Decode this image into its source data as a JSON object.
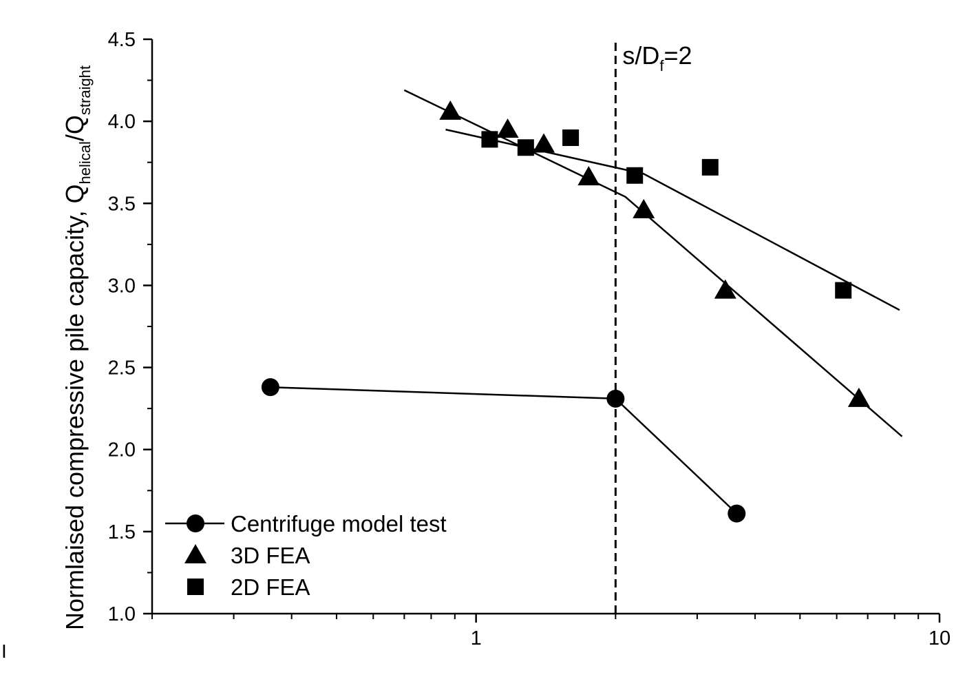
{
  "chart_data": {
    "type": "scatter",
    "title": "",
    "ylabel": {
      "main": "Normlaised compressive pile capacity, Q",
      "sub1": "helical",
      "sep": "/Q",
      "sub2": "straight"
    },
    "xlabel": "",
    "x_scale": "log",
    "xlim": [
      0.2,
      10
    ],
    "ylim": [
      1.0,
      4.5
    ],
    "x_major_ticks": [
      1,
      10
    ],
    "x_tick_labels": [
      "1",
      "10"
    ],
    "y_major_ticks": [
      1.0,
      1.5,
      2.0,
      2.5,
      3.0,
      3.5,
      4.0,
      4.5
    ],
    "y_tick_labels": [
      "1.0",
      "1.5",
      "2.0",
      "2.5",
      "3.0",
      "3.5",
      "4.0",
      "4.5"
    ],
    "grid": false,
    "legend_position": "bottom-left",
    "series": [
      {
        "name": "Centrifuge model test",
        "marker": "circle",
        "connect": true,
        "x": [
          0.36,
          2.0,
          3.65
        ],
        "y": [
          2.38,
          2.31,
          1.61
        ]
      },
      {
        "name": "3D FEA",
        "marker": "triangle",
        "connect": false,
        "x": [
          0.88,
          1.17,
          1.4,
          1.75,
          2.3,
          3.45,
          6.7
        ],
        "y": [
          4.06,
          3.95,
          3.86,
          3.66,
          3.46,
          2.97,
          2.31
        ]
      },
      {
        "name": "2D FEA",
        "marker": "square",
        "connect": false,
        "x": [
          1.07,
          1.28,
          1.6,
          2.2,
          3.2,
          6.2
        ],
        "y": [
          3.89,
          3.84,
          3.9,
          3.67,
          3.72,
          2.97
        ]
      }
    ],
    "fit_lines": [
      {
        "series": "3D FEA",
        "points": [
          [
            0.7,
            4.19
          ],
          [
            2.1,
            3.54
          ],
          [
            8.3,
            2.08
          ]
        ]
      },
      {
        "series": "2D FEA",
        "points": [
          [
            0.86,
            3.95
          ],
          [
            2.3,
            3.68
          ],
          [
            8.2,
            2.85
          ]
        ]
      }
    ],
    "reference_line": {
      "x": 2.0,
      "style": "dashed",
      "label_main": "s/D",
      "label_sub": "f",
      "label_tail": "=2"
    }
  },
  "stray_mark": "I"
}
